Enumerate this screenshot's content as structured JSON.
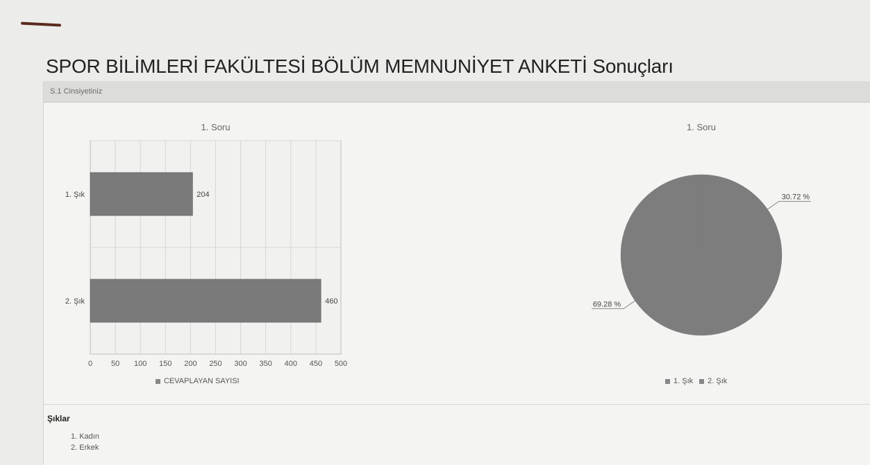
{
  "page": {
    "title": "SPOR BİLİMLERİ FAKÜLTESİ BÖLÜM MEMNUNİYET ANKETİ Sonuçları",
    "section_label": "S.1 Cinsiyetiniz"
  },
  "chart_data": [
    {
      "type": "bar",
      "orientation": "horizontal",
      "title": "1. Soru",
      "categories": [
        "1. Şık",
        "2. Şık"
      ],
      "series": [
        {
          "name": "CEVAPLAYAN SAYISI",
          "values": [
            204,
            460
          ]
        }
      ],
      "xlim": [
        0,
        500
      ],
      "xticks": [
        0,
        50,
        100,
        150,
        200,
        250,
        300,
        350,
        400,
        450,
        500
      ],
      "grid": true,
      "legend": "bottom",
      "bar_color": "#7a7a7a"
    },
    {
      "type": "pie",
      "title": "1. Soru",
      "slices": [
        {
          "label": "1. Şık",
          "value": 30.72,
          "display": "30.72 %"
        },
        {
          "label": "2. Şık",
          "value": 69.28,
          "display": "69.28 %"
        }
      ],
      "legend": "bottom",
      "slice_color": "#7d7d7d"
    }
  ],
  "options": {
    "title": "Şıklar",
    "items": [
      "1. Kadın",
      "2. Erkek"
    ]
  }
}
